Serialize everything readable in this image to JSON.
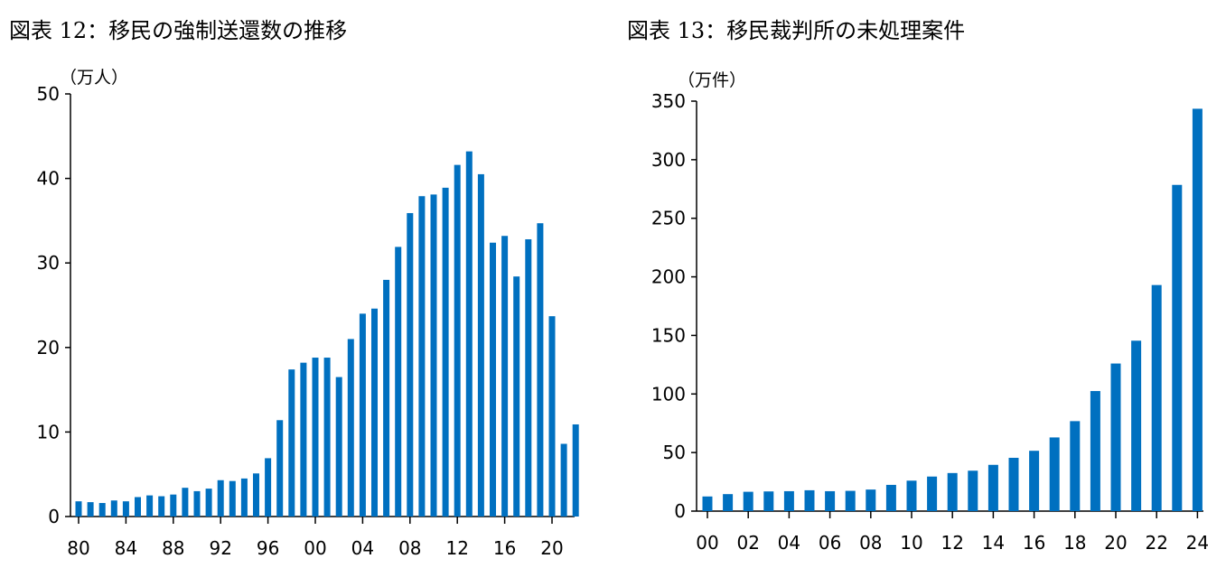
{
  "chart_data": [
    {
      "type": "bar",
      "title": "図表 12：移民の強制送還数の推移",
      "ylabel": "（万人）",
      "xlabel": "",
      "ylim": [
        0,
        50
      ],
      "yticks": [
        "0",
        "10",
        "20",
        "30",
        "40",
        "50"
      ],
      "xticklabels": [
        "80",
        "84",
        "88",
        "92",
        "96",
        "00",
        "04",
        "08",
        "12",
        "16",
        "20"
      ],
      "grid": false,
      "color": "#0070C0",
      "categories": [
        "1980",
        "1981",
        "1982",
        "1983",
        "1984",
        "1985",
        "1986",
        "1987",
        "1988",
        "1989",
        "1990",
        "1991",
        "1992",
        "1993",
        "1994",
        "1995",
        "1996",
        "1997",
        "1998",
        "1999",
        "2000",
        "2001",
        "2002",
        "2003",
        "2004",
        "2005",
        "2006",
        "2007",
        "2008",
        "2009",
        "2010",
        "2011",
        "2012",
        "2013",
        "2014",
        "2015",
        "2016",
        "2017",
        "2018",
        "2019",
        "2020",
        "2021",
        "2022"
      ],
      "values": [
        1.8,
        1.7,
        1.6,
        1.9,
        1.8,
        2.3,
        2.5,
        2.4,
        2.6,
        3.4,
        3.0,
        3.3,
        4.3,
        4.2,
        4.5,
        5.1,
        6.9,
        11.4,
        17.4,
        18.2,
        18.8,
        18.8,
        16.5,
        21.0,
        24.0,
        24.6,
        28.0,
        31.9,
        35.9,
        37.9,
        38.1,
        38.9,
        41.6,
        43.2,
        40.5,
        32.4,
        33.2,
        28.4,
        32.8,
        34.7,
        23.7,
        8.6,
        10.9
      ]
    },
    {
      "type": "bar",
      "title": "図表 13：移民裁判所の未処理案件",
      "ylabel": "（万件）",
      "xlabel": "",
      "ylim": [
        0,
        350
      ],
      "yticks": [
        "0",
        "50",
        "100",
        "150",
        "200",
        "250",
        "300",
        "350"
      ],
      "xticklabels": [
        "00",
        "02",
        "04",
        "06",
        "08",
        "10",
        "12",
        "14",
        "16",
        "18",
        "20",
        "22",
        "24"
      ],
      "grid": false,
      "color": "#0070C0",
      "categories": [
        "2000",
        "2001",
        "2002",
        "2003",
        "2004",
        "2005",
        "2006",
        "2007",
        "2008",
        "2009",
        "2010",
        "2011",
        "2012",
        "2013",
        "2014",
        "2015",
        "2016",
        "2017",
        "2018",
        "2019",
        "2020",
        "2021",
        "2022",
        "2023",
        "2024"
      ],
      "values": [
        12.5,
        14.5,
        16.5,
        16.8,
        17.0,
        17.8,
        17.0,
        17.3,
        18.4,
        22.4,
        26.0,
        29.5,
        32.5,
        34.5,
        39.5,
        45.5,
        51.5,
        62.9,
        76.8,
        102.5,
        126.0,
        145.5,
        193.0,
        278.5,
        343.5
      ]
    }
  ]
}
